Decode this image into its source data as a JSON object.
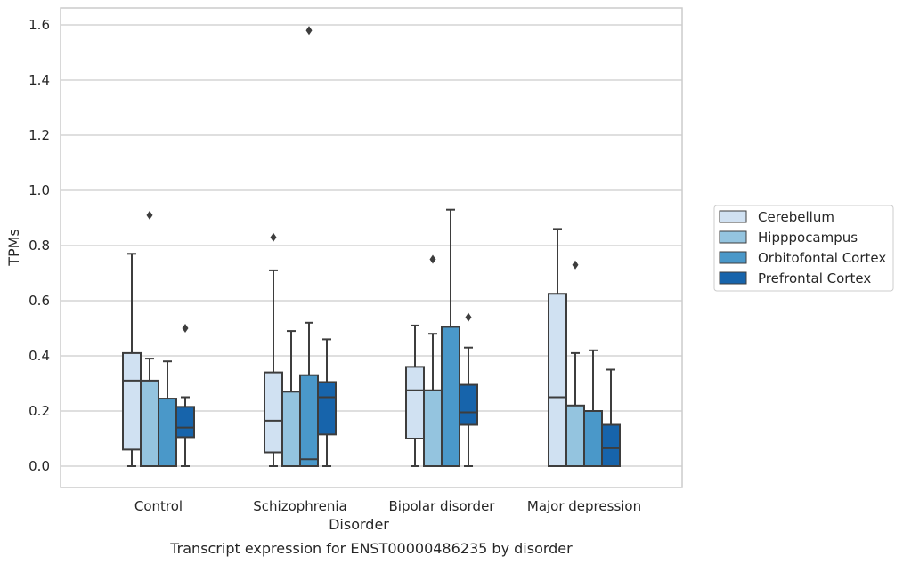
{
  "chart_data": {
    "type": "box",
    "title": "",
    "caption": "Transcript expression for ENST00000486235 by disorder",
    "xlabel": "Disorder",
    "ylabel": "TPMs",
    "ylim": [
      -0.08,
      1.66
    ],
    "yticks": [
      0.0,
      0.2,
      0.4,
      0.6,
      0.8,
      1.0,
      1.2,
      1.4,
      1.6
    ],
    "ytick_labels": [
      "0.0",
      "0.2",
      "0.4",
      "0.6",
      "0.8",
      "1.0",
      "1.2",
      "1.4",
      "1.6"
    ],
    "grid": "horizontal",
    "legend_position": "right",
    "categories": [
      "Control",
      "Schizophrenia",
      "Bipolar disorder",
      "Major depression"
    ],
    "series": [
      {
        "name": "Cerebellum",
        "color": "#d0e1f2",
        "boxes": [
          {
            "whislo": 0.0,
            "q1": 0.06,
            "med": 0.31,
            "q3": 0.41,
            "whishi": 0.77,
            "fliers": []
          },
          {
            "whislo": 0.0,
            "q1": 0.05,
            "med": 0.165,
            "q3": 0.34,
            "whishi": 0.71,
            "fliers": [
              0.83
            ]
          },
          {
            "whislo": 0.0,
            "q1": 0.1,
            "med": 0.275,
            "q3": 0.36,
            "whishi": 0.51,
            "fliers": []
          },
          {
            "whislo": 0.0,
            "q1": 0.0,
            "med": 0.25,
            "q3": 0.625,
            "whishi": 0.86,
            "fliers": []
          }
        ]
      },
      {
        "name": "Hipppocampus",
        "color": "#94c4df",
        "boxes": [
          {
            "whislo": 0.0,
            "q1": 0.0,
            "med": 0.0,
            "q3": 0.31,
            "whishi": 0.39,
            "fliers": [
              0.91
            ]
          },
          {
            "whislo": 0.0,
            "q1": 0.0,
            "med": 0.0,
            "q3": 0.27,
            "whishi": 0.49,
            "fliers": []
          },
          {
            "whislo": 0.0,
            "q1": 0.0,
            "med": 0.0,
            "q3": 0.275,
            "whishi": 0.48,
            "fliers": [
              0.75
            ]
          },
          {
            "whislo": 0.0,
            "q1": 0.0,
            "med": 0.0,
            "q3": 0.22,
            "whishi": 0.41,
            "fliers": [
              0.73
            ]
          }
        ]
      },
      {
        "name": "Orbitofontal Cortex",
        "color": "#4a98c9",
        "boxes": [
          {
            "whislo": 0.0,
            "q1": 0.0,
            "med": 0.0,
            "q3": 0.245,
            "whishi": 0.38,
            "fliers": []
          },
          {
            "whislo": 0.0,
            "q1": 0.0,
            "med": 0.025,
            "q3": 0.33,
            "whishi": 0.52,
            "fliers": [
              1.58
            ]
          },
          {
            "whislo": 0.0,
            "q1": 0.0,
            "med": 0.0,
            "q3": 0.505,
            "whishi": 0.93,
            "fliers": []
          },
          {
            "whislo": 0.0,
            "q1": 0.0,
            "med": 0.0,
            "q3": 0.2,
            "whishi": 0.42,
            "fliers": []
          }
        ]
      },
      {
        "name": "Prefrontal Cortex",
        "color": "#1764ab",
        "boxes": [
          {
            "whislo": 0.0,
            "q1": 0.105,
            "med": 0.14,
            "q3": 0.215,
            "whishi": 0.25,
            "fliers": [
              0.5
            ]
          },
          {
            "whislo": 0.0,
            "q1": 0.115,
            "med": 0.25,
            "q3": 0.305,
            "whishi": 0.46,
            "fliers": []
          },
          {
            "whislo": 0.0,
            "q1": 0.15,
            "med": 0.195,
            "q3": 0.295,
            "whishi": 0.43,
            "fliers": [
              0.54
            ]
          },
          {
            "whislo": 0.0,
            "q1": 0.0,
            "med": 0.065,
            "q3": 0.15,
            "whishi": 0.35,
            "fliers": []
          }
        ]
      }
    ],
    "colors": {
      "grid": "#cccccc",
      "frame": "#cccccc",
      "box_edge": "#3d3d3d",
      "text": "#262626"
    }
  }
}
